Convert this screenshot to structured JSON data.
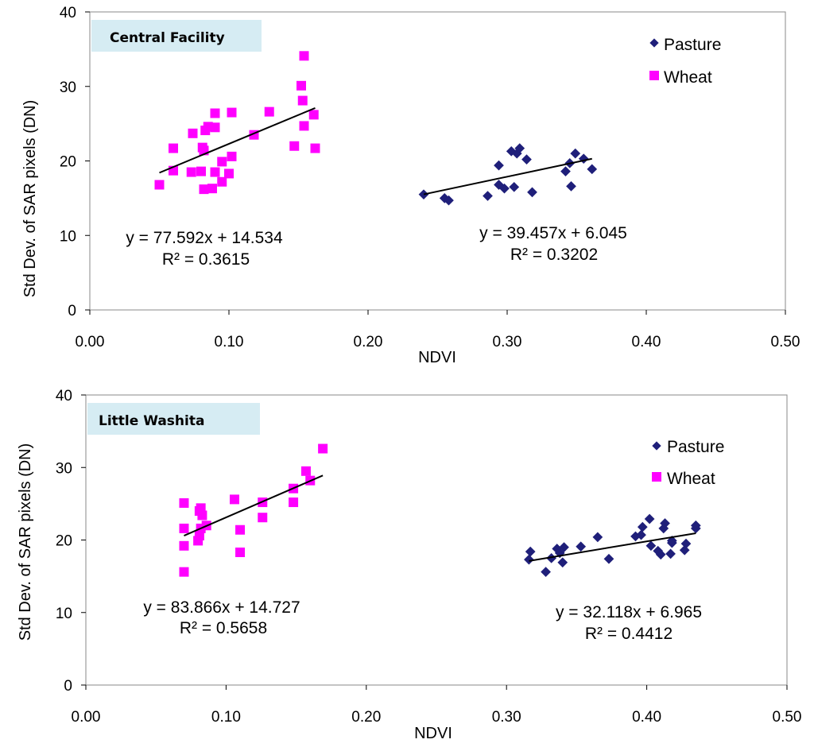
{
  "chart_data": [
    {
      "type": "scatter",
      "title": "Central Facility",
      "xlabel": "NDVI",
      "ylabel": "Std Dev. of SAR pixels (DN)",
      "xlim": [
        0,
        0.5
      ],
      "ylim": [
        0,
        40
      ],
      "x_ticks": [
        "0.00",
        "0.10",
        "0.20",
        "0.30",
        "0.40",
        "0.50"
      ],
      "y_ticks": [
        "0",
        "10",
        "20",
        "30",
        "40"
      ],
      "legend": [
        "Pasture",
        "Wheat"
      ],
      "colors": {
        "Pasture": "#1f1f7a",
        "Wheat": "#ff00ff",
        "trendline": "#000000",
        "title_bg": "#d6ecf3"
      },
      "series": [
        {
          "name": "Wheat",
          "marker": "square",
          "points": [
            [
              0.05,
              16.8
            ],
            [
              0.06,
              18.7
            ],
            [
              0.06,
              21.7
            ],
            [
              0.073,
              18.5
            ],
            [
              0.074,
              23.7
            ],
            [
              0.08,
              18.6
            ],
            [
              0.081,
              21.8
            ],
            [
              0.082,
              21.4
            ],
            [
              0.082,
              16.2
            ],
            [
              0.083,
              24.1
            ],
            [
              0.085,
              24.6
            ],
            [
              0.088,
              16.3
            ],
            [
              0.09,
              24.5
            ],
            [
              0.09,
              18.5
            ],
            [
              0.09,
              26.4
            ],
            [
              0.095,
              17.2
            ],
            [
              0.095,
              19.9
            ],
            [
              0.1,
              18.3
            ],
            [
              0.102,
              20.6
            ],
            [
              0.102,
              26.5
            ],
            [
              0.118,
              23.5
            ],
            [
              0.129,
              26.6
            ],
            [
              0.147,
              22.0
            ],
            [
              0.152,
              30.1
            ],
            [
              0.153,
              28.1
            ],
            [
              0.154,
              24.7
            ],
            [
              0.154,
              34.1
            ],
            [
              0.161,
              26.2
            ],
            [
              0.162,
              21.7
            ]
          ],
          "trendline": {
            "equation": "y = 77.592x + 14.534",
            "r2": "R² = 0.3615",
            "x_range": [
              0.05,
              0.162
            ]
          }
        },
        {
          "name": "Pasture",
          "marker": "diamond",
          "points": [
            [
              0.24,
              15.5
            ],
            [
              0.255,
              15.0
            ],
            [
              0.258,
              14.7
            ],
            [
              0.286,
              15.3
            ],
            [
              0.294,
              19.4
            ],
            [
              0.294,
              16.8
            ],
            [
              0.298,
              16.3
            ],
            [
              0.303,
              21.3
            ],
            [
              0.305,
              16.5
            ],
            [
              0.307,
              21.0
            ],
            [
              0.309,
              21.7
            ],
            [
              0.314,
              20.2
            ],
            [
              0.318,
              15.8
            ],
            [
              0.342,
              18.6
            ],
            [
              0.345,
              19.7
            ],
            [
              0.346,
              16.6
            ],
            [
              0.349,
              21.0
            ],
            [
              0.355,
              20.3
            ],
            [
              0.361,
              18.9
            ]
          ],
          "trendline": {
            "equation": "y = 39.457x + 6.045",
            "r2": "R² = 0.3202",
            "x_range": [
              0.24,
              0.361
            ]
          }
        }
      ]
    },
    {
      "type": "scatter",
      "title": "Little Washita",
      "xlabel": "NDVI",
      "ylabel": "Std Dev. of SAR pixels (DN)",
      "xlim": [
        0,
        0.5
      ],
      "ylim": [
        0,
        40
      ],
      "x_ticks": [
        "0.00",
        "0.10",
        "0.20",
        "0.30",
        "0.40",
        "0.50"
      ],
      "y_ticks": [
        "0",
        "10",
        "20",
        "30",
        "40"
      ],
      "legend": [
        "Pasture",
        "Wheat"
      ],
      "colors": {
        "Pasture": "#1f1f7a",
        "Wheat": "#ff00ff",
        "trendline": "#000000",
        "title_bg": "#d6ecf3"
      },
      "series": [
        {
          "name": "Wheat",
          "marker": "square",
          "points": [
            [
              0.07,
              15.6
            ],
            [
              0.07,
              19.2
            ],
            [
              0.07,
              21.6
            ],
            [
              0.07,
              25.1
            ],
            [
              0.08,
              19.9
            ],
            [
              0.081,
              20.6
            ],
            [
              0.081,
              24.0
            ],
            [
              0.082,
              21.6
            ],
            [
              0.082,
              24.4
            ],
            [
              0.083,
              23.4
            ],
            [
              0.086,
              22.0
            ],
            [
              0.106,
              25.6
            ],
            [
              0.11,
              21.4
            ],
            [
              0.11,
              18.3
            ],
            [
              0.126,
              25.2
            ],
            [
              0.126,
              23.1
            ],
            [
              0.148,
              27.1
            ],
            [
              0.148,
              25.2
            ],
            [
              0.157,
              29.5
            ],
            [
              0.16,
              28.2
            ],
            [
              0.169,
              32.6
            ]
          ],
          "trendline": {
            "equation": "y = 83.866x + 14.727",
            "r2": "R² = 0.5658",
            "x_range": [
              0.07,
              0.169
            ]
          }
        },
        {
          "name": "Pasture",
          "marker": "diamond",
          "points": [
            [
              0.316,
              17.3
            ],
            [
              0.317,
              18.4
            ],
            [
              0.328,
              15.6
            ],
            [
              0.332,
              17.5
            ],
            [
              0.336,
              18.8
            ],
            [
              0.338,
              18.2
            ],
            [
              0.34,
              16.9
            ],
            [
              0.341,
              19.0
            ],
            [
              0.353,
              19.1
            ],
            [
              0.365,
              20.4
            ],
            [
              0.373,
              17.4
            ],
            [
              0.392,
              20.5
            ],
            [
              0.396,
              20.7
            ],
            [
              0.397,
              21.8
            ],
            [
              0.402,
              22.9
            ],
            [
              0.403,
              19.2
            ],
            [
              0.408,
              18.5
            ],
            [
              0.41,
              18.0
            ],
            [
              0.412,
              21.6
            ],
            [
              0.413,
              22.3
            ],
            [
              0.417,
              18.1
            ],
            [
              0.418,
              19.6
            ],
            [
              0.418,
              19.9
            ],
            [
              0.427,
              18.6
            ],
            [
              0.428,
              19.5
            ],
            [
              0.435,
              21.6
            ],
            [
              0.435,
              22.0
            ]
          ],
          "trendline": {
            "equation": "y = 32.118x + 6.965",
            "r2": "R² = 0.4412",
            "x_range": [
              0.316,
              0.435
            ]
          }
        }
      ]
    }
  ]
}
